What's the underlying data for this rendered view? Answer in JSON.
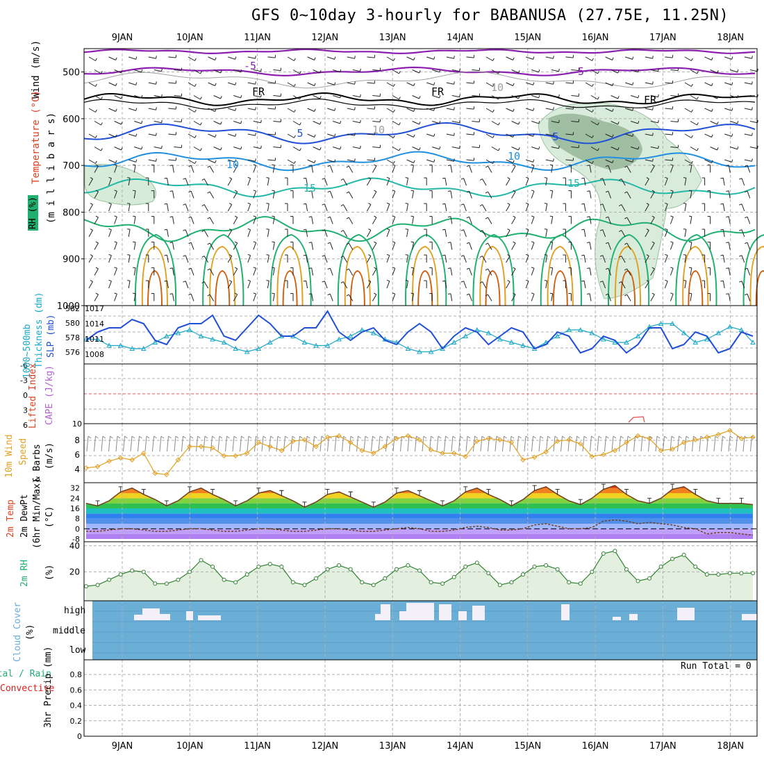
{
  "title": "GFS 0~10day 3-hourly for BABANUSA (27.75E, 11.25N)",
  "dates": [
    "9JAN",
    "10JAN",
    "11JAN",
    "12JAN",
    "13JAN",
    "14JAN",
    "15JAN",
    "16JAN",
    "17JAN",
    "18JAN"
  ],
  "colors": {
    "purple": "#8a1fb0",
    "blue": "#1f4fd8",
    "cyan": "#18a8c8",
    "teal": "#22b8a8",
    "green": "#1fb070",
    "orange": "#e0a020",
    "darkorange": "#d06010",
    "magenta": "#e01080",
    "frame": "#000000",
    "grid": "#b0b0b0",
    "cloud": "#6baed6"
  },
  "panels": {
    "upper": {
      "label_wind": "Wind (m/s)",
      "label_temp": "Temperature (°C)",
      "label_rh": "RH (%)",
      "label_mb": "(m i l l i b a r s)",
      "y_ticks": [
        "500",
        "600",
        "700",
        "800",
        "900",
        "1000"
      ],
      "contour_labels": [
        "-5",
        "-5",
        "FR",
        "FR",
        "FR",
        "5",
        "5",
        "10",
        "10",
        "15",
        "15",
        "10",
        "10"
      ]
    },
    "thickness": {
      "label_a": "Thickness (dm)",
      "label_b": "1000~500mb",
      "label_c": "SLP (mb)",
      "left_ticks": [
        "582",
        "580",
        "578",
        "576"
      ],
      "right_ticks": [
        "1017",
        "1014",
        "1011",
        "1008"
      ]
    },
    "cape": {
      "label_a": "Lifted Index",
      "label_b": "CAPE (J/kg)",
      "left_ticks": [
        "-6",
        "-3",
        "0",
        "3",
        "6"
      ],
      "right_ticks": [
        "10"
      ]
    },
    "wind10": {
      "label_a": "10m Wind",
      "label_b": "Speed",
      "label_c": "& Barbs",
      "label_d": "(m/s)",
      "y_ticks": [
        "8",
        "6",
        "4"
      ]
    },
    "temp": {
      "label_a": "2m Temp",
      "label_b": "2m DewPt",
      "label_c": "(6hr Min/Max)",
      "label_d": "(°C)",
      "y_ticks": [
        "32",
        "24",
        "16",
        "8",
        "0",
        "-8"
      ]
    },
    "rh": {
      "label_a": "2m RH",
      "label_b": "(%)",
      "y_ticks": [
        "40",
        "20"
      ]
    },
    "cloud": {
      "label_a": "Cloud Cover",
      "label_b": "(%)",
      "levels": [
        "high",
        "middle",
        "low"
      ]
    },
    "precip": {
      "label_a": "Total / Rain",
      "label_b": "Convective",
      "label_c": "3hr Precip (mm)",
      "y_ticks": [
        "0.8",
        "0.6",
        "0.4",
        "0.2",
        "0"
      ],
      "run_total": "Run Total = 0"
    }
  },
  "chart_data": [
    {
      "type": "line",
      "name": "SLP (mb)",
      "ylim": [
        1005,
        1017
      ],
      "values": [
        1010,
        1012,
        1013,
        1013,
        1015,
        1014,
        1010,
        1009,
        1013,
        1014,
        1014,
        1016,
        1011,
        1010,
        1013,
        1016,
        1014,
        1011,
        1011,
        1013,
        1013,
        1017,
        1012,
        1010,
        1012,
        1013,
        1010,
        1009,
        1012,
        1014,
        1012,
        1008,
        1011,
        1013,
        1012,
        1009,
        1011,
        1013,
        1012,
        1008,
        1009,
        1012,
        1011,
        1007,
        1008,
        1011,
        1010,
        1007,
        1009,
        1013,
        1013,
        1008,
        1009,
        1012,
        1011,
        1007,
        1008,
        1012,
        1011
      ]
    },
    {
      "type": "line",
      "name": "1000~500mb Thickness (dm)",
      "ylim": [
        574,
        582
      ],
      "values": [
        577.5,
        577.5,
        576.5,
        576.5,
        576,
        576,
        577,
        578,
        578.5,
        579,
        578,
        577.5,
        577,
        576,
        575.5,
        576,
        577,
        578,
        578,
        577,
        576.5,
        576.5,
        577.5,
        578,
        579,
        578.5,
        577.5,
        577,
        576,
        575.5,
        575.5,
        576,
        577,
        578,
        579,
        578.5,
        577.5,
        577,
        576.5,
        576,
        577,
        578,
        579,
        579,
        578.5,
        577.5,
        577,
        577,
        578,
        579.5,
        580,
        580,
        578.5,
        577,
        577.5,
        578.5,
        579.5,
        579,
        577
      ]
    },
    {
      "type": "line",
      "name": "10m Wind Speed (m/s)",
      "ylim": [
        2,
        10
      ],
      "values": [
        3.8,
        4,
        4.8,
        5.3,
        5,
        6,
        3,
        2.8,
        5,
        7,
        7,
        6.8,
        5.6,
        5.6,
        6,
        7.6,
        7,
        6.4,
        7.8,
        8,
        7,
        8.4,
        8.6,
        7.6,
        6.4,
        6,
        7,
        8.2,
        8.6,
        8,
        6.5,
        6,
        6,
        5.5,
        7.8,
        8.2,
        8,
        7.6,
        5,
        5.4,
        6.2,
        7.8,
        8,
        7.4,
        5.5,
        5.8,
        6.4,
        7.6,
        8.6,
        8.2,
        6.4,
        6.6,
        7.6,
        8,
        8.4,
        8.8,
        9.4,
        8.2,
        8.4
      ]
    },
    {
      "type": "line",
      "name": "2m RH (%)",
      "ylim": [
        0,
        42
      ],
      "values": [
        9,
        10,
        14,
        18,
        21,
        20,
        11,
        11,
        14,
        20,
        29,
        24,
        14,
        12,
        18,
        24,
        26,
        24,
        12,
        10,
        15,
        22,
        25,
        22,
        12,
        10,
        15,
        22,
        25,
        21,
        12,
        11,
        16,
        24,
        27,
        19,
        10,
        12,
        18,
        24,
        25,
        22,
        12,
        11,
        20,
        34,
        36,
        22,
        13,
        15,
        24,
        30,
        33,
        24,
        18,
        18,
        19,
        19,
        19
      ]
    },
    {
      "type": "area",
      "name": "2m Temp (°C)",
      "ylim": [
        -8,
        34
      ],
      "values": [
        20,
        18,
        22,
        29,
        32,
        27,
        23,
        18,
        22,
        29,
        32,
        27,
        23,
        18,
        22,
        28,
        30,
        26,
        22,
        17,
        21,
        27,
        29,
        25,
        21,
        17,
        21,
        28,
        30,
        26,
        22,
        18,
        22,
        29,
        32,
        27,
        23,
        18,
        23,
        30,
        33,
        27,
        22,
        19,
        24,
        31,
        34,
        27,
        22,
        20,
        24,
        31,
        33,
        27,
        22,
        20,
        20,
        20,
        19
      ]
    },
    {
      "type": "line",
      "name": "2m DewPt (°C)",
      "ylim": [
        -8,
        34
      ],
      "values": [
        -2,
        -2,
        -1,
        0,
        0,
        -1,
        -2,
        -2,
        -1,
        0,
        0,
        -1,
        -2,
        -2,
        -1,
        0,
        0,
        -1,
        -2,
        -2,
        -1,
        0,
        0,
        -1,
        -2,
        -2,
        -1,
        0,
        1,
        0,
        -2,
        -2,
        -1,
        1,
        2,
        1,
        -1,
        -1,
        0,
        3,
        4,
        2,
        0,
        0,
        1,
        6,
        7,
        6,
        4,
        5,
        4,
        3,
        1,
        0,
        -4,
        -3,
        -3,
        -4,
        -5
      ]
    }
  ]
}
